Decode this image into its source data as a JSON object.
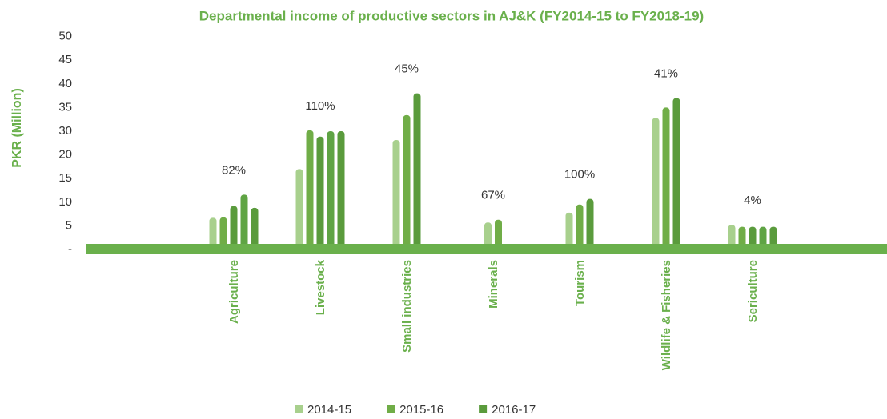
{
  "chart_data": {
    "type": "bar",
    "title": "Departmental income of productive sectors in AJ&K (FY2014-15 to FY2018-19)",
    "ylabel": "PKR (Million)",
    "categories": [
      "Agriculture",
      "Livestock",
      "Small industries",
      "Minerals",
      "Tourism",
      "Wildlife & Fisheries",
      "Sericulture"
    ],
    "series": [
      {
        "name": "2014-15",
        "color": "#a8d08d",
        "values": [
          6.7,
          17,
          26.3,
          5.7,
          7.8,
          32.8,
          5.2
        ]
      },
      {
        "name": "2015-16",
        "color": "#70ad47",
        "values": [
          6.8,
          30.2,
          33.4,
          6.3,
          9.5,
          35,
          4.8
        ]
      },
      {
        "name": "2016-17",
        "color": "#5a9b3c",
        "values": [
          9.2,
          27.7,
          38,
          null,
          10.7,
          37,
          4.8
        ]
      },
      {
        "color": "#5fa444",
        "values": [
          11.6,
          30,
          null,
          null,
          null,
          null,
          4.8
        ]
      },
      {
        "color": "#5a9b3c",
        "values": [
          8.8,
          30,
          null,
          null,
          null,
          null,
          4.8
        ]
      }
    ],
    "annotations": [
      "82%",
      "110%",
      "45%",
      "67%",
      "100%",
      "41%",
      "4%"
    ],
    "ylim": [
      0,
      50
    ],
    "yticks": [
      {
        "value": 0,
        "label": "-"
      },
      5,
      10,
      15,
      20,
      30,
      35,
      40,
      45,
      50
    ],
    "axis_color": "#6ab04c"
  }
}
